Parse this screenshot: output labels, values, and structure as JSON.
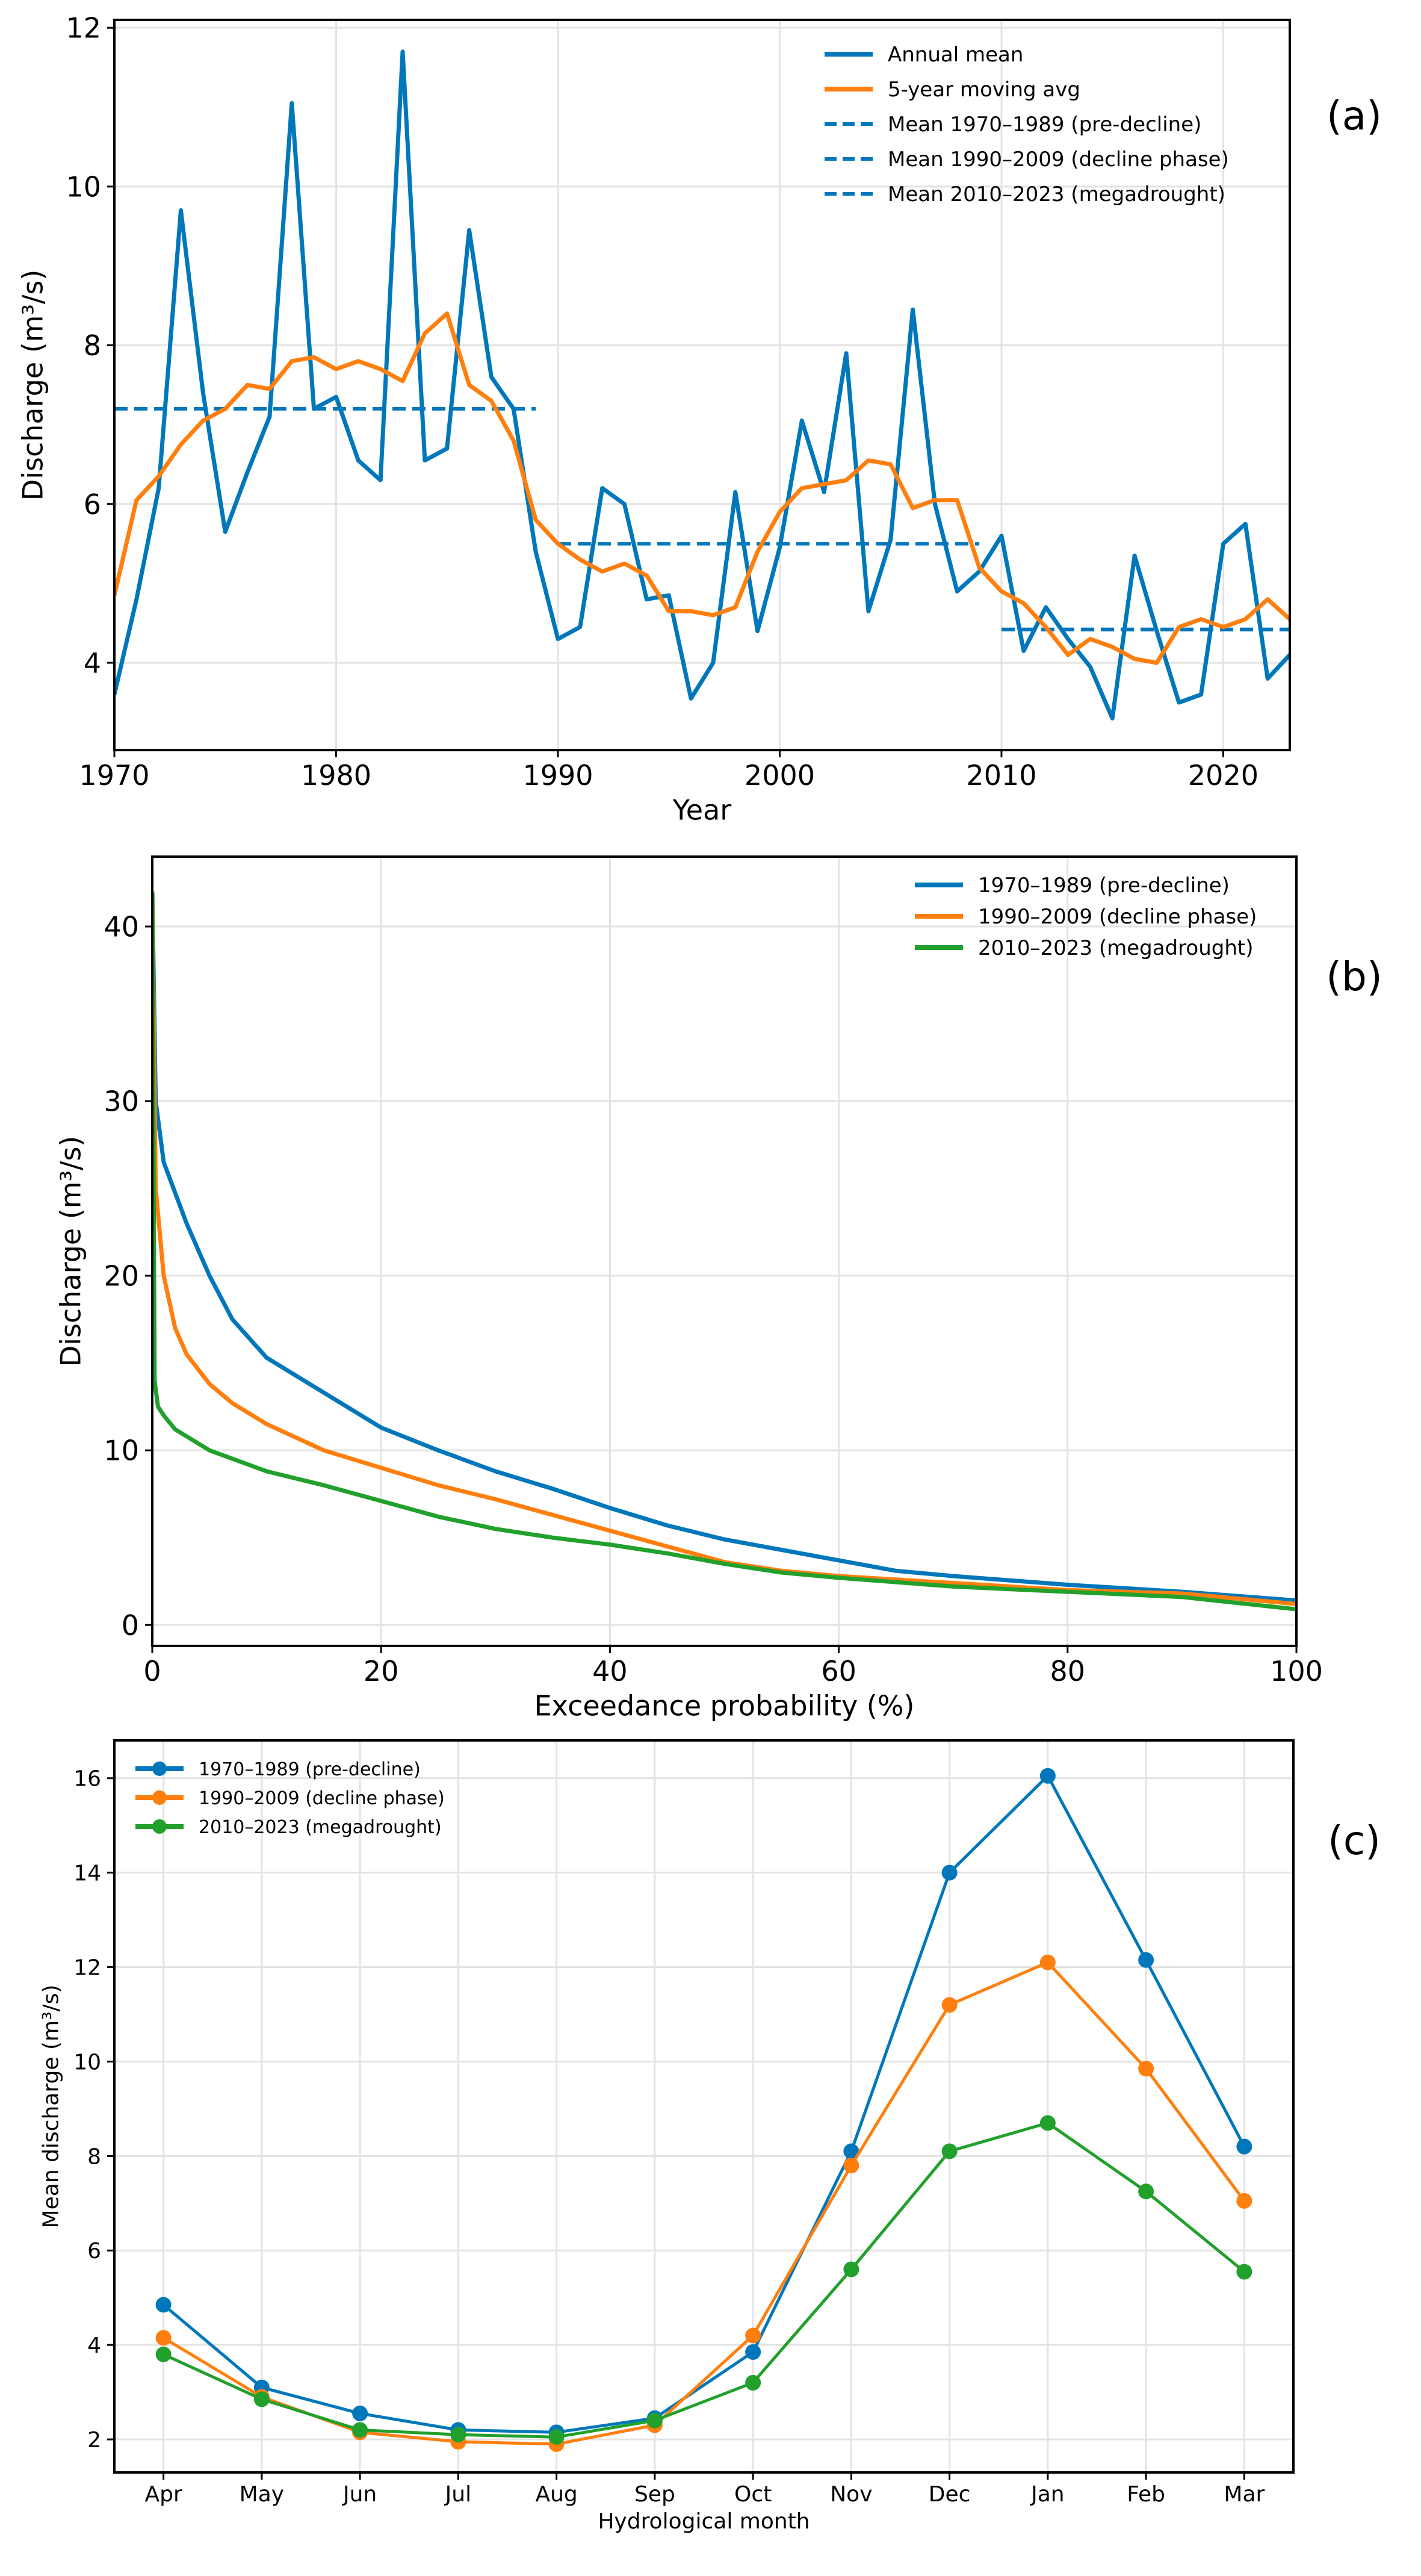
{
  "chart_data": [
    {
      "type": "line",
      "panel_label": "(a)",
      "xlabel": "Year",
      "ylabel": "Discharge (m³/s)",
      "xlim": [
        1970,
        2023
      ],
      "ylim": [
        2.9,
        12.1
      ],
      "xticks": [
        1970,
        1980,
        1990,
        2000,
        2010,
        2020
      ],
      "yticks": [
        4,
        6,
        8,
        10,
        12
      ],
      "grid": true,
      "legend_position": "top-right",
      "x": [
        1970,
        1971,
        1972,
        1973,
        1974,
        1975,
        1976,
        1977,
        1978,
        1979,
        1980,
        1981,
        1982,
        1983,
        1984,
        1985,
        1986,
        1987,
        1988,
        1989,
        1990,
        1991,
        1992,
        1993,
        1994,
        1995,
        1996,
        1997,
        1998,
        1999,
        2000,
        2001,
        2002,
        2003,
        2004,
        2005,
        2006,
        2007,
        2008,
        2009,
        2010,
        2011,
        2012,
        2013,
        2014,
        2015,
        2016,
        2017,
        2018,
        2019,
        2020,
        2021,
        2022,
        2023
      ],
      "series": [
        {
          "name": "Annual mean",
          "color": "#0077bb",
          "style": "solid",
          "values": [
            3.6,
            4.8,
            6.2,
            9.7,
            7.4,
            5.65,
            6.4,
            7.1,
            11.05,
            7.2,
            7.35,
            6.55,
            6.3,
            11.7,
            6.55,
            6.7,
            9.45,
            7.6,
            7.2,
            5.4,
            4.3,
            4.45,
            6.2,
            6.0,
            4.8,
            4.85,
            3.55,
            4.0,
            6.15,
            4.4,
            5.45,
            7.05,
            6.15,
            7.9,
            4.65,
            5.55,
            8.45,
            6.0,
            4.9,
            5.15,
            5.6,
            4.15,
            4.7,
            4.3,
            3.95,
            3.3,
            5.35,
            4.4,
            3.5,
            3.6,
            5.5,
            5.75,
            3.8,
            4.1
          ]
        },
        {
          "name": "5-year moving avg",
          "color": "#ff7f0e",
          "style": "solid",
          "values": [
            4.85,
            6.05,
            6.35,
            6.75,
            7.05,
            7.2,
            7.5,
            7.45,
            7.8,
            7.85,
            7.7,
            7.8,
            7.7,
            7.55,
            8.15,
            8.4,
            7.5,
            7.3,
            6.8,
            5.8,
            5.5,
            5.3,
            5.15,
            5.25,
            5.1,
            4.65,
            4.65,
            4.6,
            4.7,
            5.4,
            5.9,
            6.2,
            6.25,
            6.3,
            6.55,
            6.5,
            5.95,
            6.05,
            6.05,
            5.2,
            4.9,
            4.75,
            4.45,
            4.1,
            4.3,
            4.2,
            4.05,
            4.0,
            4.45,
            4.55,
            4.45,
            4.55,
            4.8,
            4.55
          ]
        }
      ],
      "period_means": [
        {
          "name": "Mean 1970–1989 (pre-decline)",
          "color": "#0077bb",
          "x_range": [
            1970,
            1989
          ],
          "value": 7.2
        },
        {
          "name": "Mean 1990–2009 (decline phase)",
          "color": "#0077bb",
          "x_range": [
            1990,
            2009
          ],
          "value": 5.5
        },
        {
          "name": "Mean 2010–2023 (megadrought)",
          "color": "#0077bb",
          "x_range": [
            2010,
            2023
          ],
          "value": 4.42
        }
      ]
    },
    {
      "type": "line",
      "panel_label": "(b)",
      "xlabel": "Exceedance probability (%)",
      "ylabel": "Discharge (m³/s)",
      "xlim": [
        0,
        100
      ],
      "ylim": [
        -1.2,
        44
      ],
      "xticks": [
        0,
        20,
        40,
        60,
        80,
        100
      ],
      "yticks": [
        0,
        10,
        20,
        30,
        40
      ],
      "grid": true,
      "legend_position": "top-right",
      "series": [
        {
          "name": "1970–1989 (pre-decline)",
          "color": "#0077bb",
          "x": [
            0,
            0.3,
            1,
            3,
            5,
            7,
            10,
            15,
            20,
            25,
            30,
            35,
            40,
            45,
            50,
            55,
            60,
            65,
            70,
            80,
            90,
            100
          ],
          "values": [
            42,
            30,
            26.5,
            23,
            20,
            17.5,
            15.3,
            13.3,
            11.3,
            10,
            8.8,
            7.8,
            6.7,
            5.7,
            4.9,
            4.3,
            3.7,
            3.1,
            2.8,
            2.3,
            1.9,
            1.4
          ]
        },
        {
          "name": "1990–2009 (decline phase)",
          "color": "#ff7f0e",
          "x": [
            0,
            0.3,
            1,
            2,
            3,
            5,
            7,
            10,
            15,
            20,
            25,
            30,
            35,
            40,
            45,
            50,
            55,
            60,
            70,
            80,
            90,
            100
          ],
          "values": [
            42,
            25,
            20,
            17,
            15.5,
            13.8,
            12.7,
            11.5,
            10,
            9,
            8,
            7.2,
            6.3,
            5.4,
            4.5,
            3.6,
            3.1,
            2.8,
            2.4,
            2.0,
            1.8,
            1.2
          ]
        },
        {
          "name": "2010–2023 (megadrought)",
          "color": "#22a02c",
          "x": [
            0,
            0.2,
            0.5,
            1,
            2,
            5,
            10,
            15,
            20,
            25,
            30,
            35,
            40,
            45,
            50,
            55,
            60,
            70,
            80,
            90,
            100
          ],
          "values": [
            42,
            14,
            12.5,
            12,
            11.2,
            10,
            8.8,
            8.0,
            7.1,
            6.2,
            5.5,
            5.0,
            4.6,
            4.1,
            3.5,
            3.0,
            2.7,
            2.2,
            1.9,
            1.6,
            0.9
          ]
        }
      ]
    },
    {
      "type": "line",
      "panel_label": "(c)",
      "xlabel": "Hydrological month",
      "ylabel": "Mean discharge (m³/s)",
      "categories": [
        "Apr",
        "May",
        "Jun",
        "Jul",
        "Aug",
        "Sep",
        "Oct",
        "Nov",
        "Dec",
        "Jan",
        "Feb",
        "Mar"
      ],
      "ylim": [
        1.3,
        16.8
      ],
      "yticks": [
        2,
        4,
        6,
        8,
        10,
        12,
        14,
        16
      ],
      "grid": true,
      "legend_position": "top-left",
      "markers": true,
      "series": [
        {
          "name": "1970–1989 (pre-decline)",
          "color": "#0077bb",
          "values": [
            4.85,
            3.1,
            2.55,
            2.2,
            2.15,
            2.45,
            3.85,
            8.1,
            14.0,
            16.05,
            12.15,
            8.2
          ]
        },
        {
          "name": "1990–2009 (decline phase)",
          "color": "#ff7f0e",
          "values": [
            4.15,
            2.9,
            2.15,
            1.95,
            1.9,
            2.3,
            4.2,
            7.8,
            11.2,
            12.1,
            9.85,
            7.05
          ]
        },
        {
          "name": "2010–2023 (megadrought)",
          "color": "#22a02c",
          "values": [
            3.8,
            2.85,
            2.2,
            2.1,
            2.05,
            2.4,
            3.2,
            5.6,
            8.1,
            8.7,
            7.25,
            5.55
          ]
        }
      ]
    }
  ]
}
